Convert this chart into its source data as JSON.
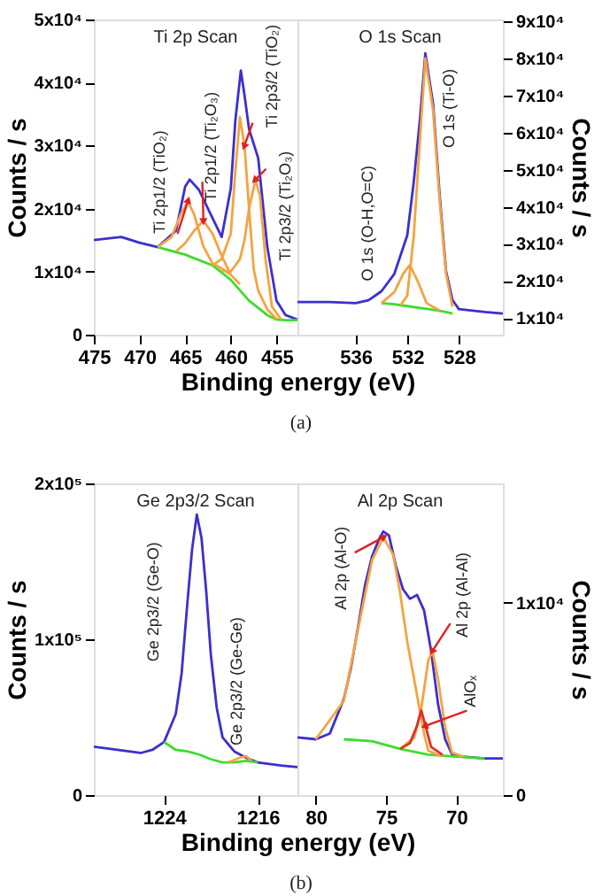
{
  "chart_data": [
    {
      "type": "line",
      "title": "Ti 2p Scan",
      "xlabel": "Binding energy (eV)",
      "ylabel": "Counts / s",
      "xlim": [
        475,
        452.7
      ],
      "xticks": [
        475,
        470,
        465,
        460,
        455
      ],
      "ylim": [
        0,
        50000
      ],
      "yticks": [
        {
          "value": 0,
          "label": "0"
        },
        {
          "value": 10000,
          "label": "1x10⁴"
        },
        {
          "value": 20000,
          "label": "2x10⁴"
        },
        {
          "value": 30000,
          "label": "3x10⁴"
        },
        {
          "value": 40000,
          "label": "4x10⁴"
        },
        {
          "value": 50000,
          "label": "5x10⁴"
        }
      ],
      "grid": false,
      "series": [
        {
          "color": "#3b2fd0",
          "x": [
            475,
            472,
            470,
            468,
            466,
            465,
            464.5,
            463.5,
            462,
            461,
            460,
            459.5,
            458.9,
            458.5,
            458,
            457,
            456,
            455,
            454,
            452.7
          ],
          "values": [
            15000,
            15500,
            14600,
            13900,
            16500,
            23500,
            24600,
            23000,
            18500,
            15500,
            23200,
            34000,
            41900,
            38000,
            32600,
            28000,
            13900,
            5400,
            3100,
            2400
          ]
        },
        {
          "color": "#3ddc2a",
          "x": [
            468,
            465,
            462,
            460,
            458,
            456,
            455,
            454,
            452.7
          ],
          "values": [
            13900,
            12700,
            11000,
            8700,
            5400,
            3100,
            2400,
            2300,
            2300
          ]
        },
        {
          "color": "#f5a340",
          "x": [
            468,
            466.5,
            465.5,
            464.7,
            464,
            463,
            462,
            461,
            460
          ],
          "values": [
            13900,
            15500,
            19000,
            21200,
            19000,
            14000,
            11300,
            10500,
            9500
          ]
        },
        {
          "color": "#f5a340",
          "x": [
            466,
            465,
            464,
            463,
            462,
            461,
            460,
            459
          ],
          "values": [
            13200,
            14500,
            16500,
            18100,
            16000,
            12500,
            9500,
            8000
          ]
        },
        {
          "color": "#f5a340",
          "x": [
            462,
            461,
            460,
            459.5,
            459,
            458.5,
            458,
            457.5,
            457,
            456,
            455
          ],
          "values": [
            11000,
            12000,
            16000,
            26000,
            34500,
            30000,
            20000,
            10500,
            7000,
            4000,
            2500
          ]
        },
        {
          "color": "#f5a340",
          "x": [
            461,
            460,
            459,
            458.5,
            458,
            457.3,
            456.8,
            456.2,
            455.5,
            454.5
          ],
          "values": [
            10200,
            10000,
            12000,
            15000,
            20000,
            24600,
            22000,
            12000,
            4500,
            2400
          ]
        }
      ],
      "annotations": [
        {
          "text": "Ti 2p1/2 (TiO₂)",
          "x": 464.7,
          "y": 21200
        },
        {
          "text": "Ti 2p1/2 (Ti₂O₃)",
          "x": 463.0,
          "y": 18100
        },
        {
          "text": "Ti 2p3/2 (TiO₂)",
          "x": 458.5,
          "y": 30000
        },
        {
          "text": "Ti 2p3/2 (Ti₂O₃)",
          "x": 457.3,
          "y": 24600
        },
        "(a)"
      ]
    },
    {
      "type": "line",
      "title": "O 1s Scan",
      "ylabel": "Counts / s",
      "xlim": [
        540.5,
        524.6
      ],
      "xticks": [
        536,
        532,
        528
      ],
      "ylim": [
        5500,
        90500
      ],
      "yticks": [
        {
          "value": 10000,
          "label": "1x10⁴"
        },
        {
          "value": 20000,
          "label": "2x10⁴"
        },
        {
          "value": 30000,
          "label": "3x10⁴"
        },
        {
          "value": 40000,
          "label": "4x10⁴"
        },
        {
          "value": 50000,
          "label": "5x10⁴"
        },
        {
          "value": 60000,
          "label": "6x10⁴"
        },
        {
          "value": 70000,
          "label": "7x10⁴"
        },
        {
          "value": 80000,
          "label": "8x10⁴"
        },
        {
          "value": 90000,
          "label": "9x10⁴"
        }
      ],
      "grid": false,
      "series": [
        {
          "color": "#3b2fd0",
          "x": [
            540.5,
            538,
            536,
            535,
            534,
            533,
            532,
            531.5,
            531,
            530.6,
            530,
            529.5,
            529,
            528.5,
            528,
            526,
            524.6
          ],
          "values": [
            14300,
            14300,
            14000,
            14800,
            17200,
            21900,
            32300,
            46600,
            64200,
            81400,
            67700,
            43500,
            22700,
            14800,
            12400,
            11600,
            11200
          ]
        },
        {
          "color": "#3ddc2a",
          "x": [
            534,
            533,
            532,
            531,
            530,
            529,
            528.5
          ],
          "values": [
            14000,
            13700,
            13200,
            12700,
            12200,
            11600,
            11200
          ]
        },
        {
          "color": "#f5a340",
          "x": [
            534,
            533,
            532.3,
            531.8,
            531.2,
            530.5,
            529.5
          ],
          "values": [
            14000,
            17000,
            22000,
            24300,
            20000,
            14000,
            12000
          ]
        },
        {
          "color": "#f5a340",
          "x": [
            532.5,
            532,
            531.5,
            531,
            530.6,
            530,
            529.5,
            529,
            528.5
          ],
          "values": [
            13500,
            16000,
            32000,
            59000,
            80000,
            66000,
            42000,
            22000,
            13000
          ]
        }
      ],
      "annotations": [
        "O 1s (O-H,O=C)",
        "O 1s (Ti-O)"
      ]
    },
    {
      "type": "line",
      "title": "Ge 2p3/2 Scan",
      "xlabel": "Binding energy (eV)",
      "ylabel": "Counts / s",
      "xlim": [
        1230,
        1212.6
      ],
      "xticks": [
        1224,
        1216
      ],
      "ylim": [
        0,
        200000
      ],
      "yticks": [
        {
          "value": 0,
          "label": "0"
        },
        {
          "value": 100000,
          "label": "1x10⁵"
        },
        {
          "value": 200000,
          "label": "2x10⁵"
        }
      ],
      "grid": false,
      "series": [
        {
          "color": "#3b2fd0",
          "x": [
            1230,
            1228,
            1226,
            1225,
            1224,
            1223,
            1222.5,
            1222,
            1221.6,
            1221.2,
            1220.8,
            1220.4,
            1220,
            1219.5,
            1219,
            1218,
            1217,
            1216,
            1214,
            1212.6
          ],
          "values": [
            31000,
            29000,
            27000,
            29000,
            34000,
            52000,
            78000,
            124000,
            158000,
            180000,
            165000,
            131000,
            90000,
            56000,
            37000,
            28000,
            24000,
            21000,
            19000,
            18000
          ]
        },
        {
          "color": "#3ddc2a",
          "x": [
            1224,
            1223,
            1222,
            1221,
            1220,
            1219,
            1218,
            1217,
            1216
          ],
          "values": [
            34000,
            29000,
            28000,
            26000,
            23000,
            21000,
            21000,
            22000,
            21000
          ]
        },
        {
          "color": "#f5a340",
          "x": [
            1218.5,
            1217.5,
            1217,
            1216.5
          ],
          "values": [
            21000,
            24000,
            25000,
            22000
          ]
        }
      ],
      "annotations": [
        "Ge 2p3/2 (Ge-O)",
        "Ge 2p3/2 (Ge-Ge)",
        "(b)"
      ]
    },
    {
      "type": "line",
      "title": "Al 2p Scan",
      "ylabel": "Counts / s",
      "xlim": [
        81.3,
        66.7
      ],
      "xticks": [
        80,
        75,
        70
      ],
      "ylim": [
        0,
        16200
      ],
      "yticks": [
        {
          "value": 0,
          "label": "0"
        },
        {
          "value": 10000,
          "label": "1x10⁴"
        }
      ],
      "grid": false,
      "series": [
        {
          "color": "#3b2fd0",
          "x": [
            81.3,
            80,
            79,
            78,
            77.5,
            77,
            76.5,
            76,
            75.5,
            75.2,
            74.8,
            74.3,
            73.8,
            73.3,
            72.8,
            72.3,
            71.8,
            71.3,
            70.8,
            70.3,
            69.5,
            68,
            66.7
          ],
          "values": [
            3000,
            2900,
            3200,
            5000,
            6600,
            8700,
            10900,
            12400,
            13300,
            13700,
            13500,
            11900,
            10700,
            10200,
            10400,
            9600,
            7500,
            4700,
            2900,
            2100,
            2000,
            1900,
            1900
          ]
        },
        {
          "color": "#3ddc2a",
          "x": [
            78,
            76,
            74,
            72,
            70,
            68
          ],
          "values": [
            2900,
            2800,
            2400,
            2100,
            2000,
            1900
          ]
        },
        {
          "color": "#f5a340",
          "x": [
            80,
            78,
            77,
            76,
            75.2,
            74.5,
            74,
            73.5,
            73,
            72.3,
            72,
            71
          ],
          "values": [
            2900,
            4900,
            8600,
            12200,
            13400,
            12500,
            10500,
            8000,
            6000,
            3200,
            2300,
            2000
          ]
        },
        {
          "color": "#f5a340",
          "x": [
            74,
            73,
            72.5,
            72,
            71.7,
            71.3,
            70.8,
            70.3,
            69.5
          ],
          "values": [
            2400,
            3000,
            4500,
            7000,
            7500,
            6000,
            3500,
            2200,
            2000
          ]
        },
        {
          "color": "#e03020",
          "x": [
            74,
            73.3,
            72.8,
            72.5,
            72.2,
            71.8,
            71
          ],
          "values": [
            2400,
            2700,
            3600,
            4400,
            3600,
            2500,
            2100
          ]
        }
      ],
      "annotations": [
        {
          "text": "Al 2p (Al-O)",
          "x": 75.2,
          "y": 13400
        },
        {
          "text": "Al 2p (Al-Al)",
          "x": 71.7,
          "y": 7500
        },
        {
          "text": "AlOₓ",
          "x": 72.2,
          "y": 3600
        }
      ]
    }
  ]
}
